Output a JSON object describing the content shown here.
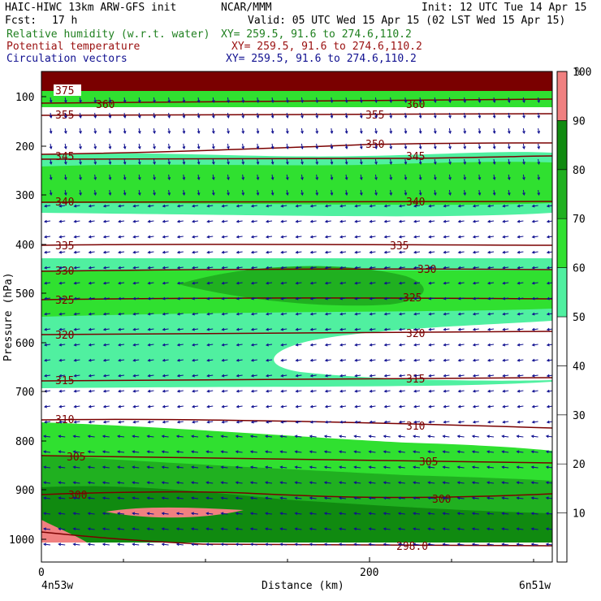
{
  "header": {
    "model": "HAIC-HIWC 13km ARW-GFS init",
    "org": "NCAR/MMM",
    "init": "Init: 12 UTC Tue 14 Apr 15",
    "fcst_label": "Fcst:",
    "fcst_value": "17 h",
    "valid": "Valid: 05 UTC Wed 15 Apr 15 (02 LST Wed 15 Apr 15)",
    "fields": [
      {
        "name": "Relative humidity (w.r.t. water)",
        "xy": "XY= 259.5, 91.6 to 274.6,110.2",
        "color": "#208020"
      },
      {
        "name": "Potential temperature",
        "xy": "XY= 259.5, 91.6 to 274.6,110.2",
        "color": "#9a1010"
      },
      {
        "name": "Circulation vectors",
        "xy": "XY= 259.5, 91.6 to 274.6,110.2",
        "color": "#101090"
      }
    ]
  },
  "chart_data": {
    "type": "heatmap",
    "ylabel": "Pressure (hPa)",
    "xlabel": "Distance (km)",
    "x_ticks": [
      "0",
      "200"
    ],
    "y_ticks": [
      "100",
      "200",
      "300",
      "400",
      "500",
      "600",
      "700",
      "800",
      "900",
      "1000"
    ],
    "left_endpoint": "4n53w",
    "right_endpoint": "6n51w",
    "colorbar": {
      "unit": "%",
      "levels": [
        "10",
        "20",
        "30",
        "40",
        "50",
        "60",
        "70",
        "80",
        "90",
        "100"
      ],
      "colors": [
        "#ffffff",
        "#ffffff",
        "#ffffff",
        "#ffffff",
        "#ffffff",
        "#50f0a0",
        "#30e030",
        "#20b020",
        "#108a10",
        "#f08080"
      ]
    },
    "theta_contours": [
      {
        "label": "375",
        "p": 75
      },
      {
        "label": "360",
        "p": 112
      },
      {
        "label": "355",
        "p": 140
      },
      {
        "label": "350",
        "p": 180
      },
      {
        "label": "345",
        "p": 220
      },
      {
        "label": "340",
        "p": 315
      },
      {
        "label": "335",
        "p": 400
      },
      {
        "label": "330",
        "p": 455
      },
      {
        "label": "325",
        "p": 510
      },
      {
        "label": "320",
        "p": 590
      },
      {
        "label": "315",
        "p": 675
      },
      {
        "label": "310",
        "p": 760
      },
      {
        "label": "305",
        "p": 835
      },
      {
        "label": "300",
        "p": 910
      },
      {
        "label": "298.0",
        "p": 1005
      }
    ],
    "rh_bands": [
      {
        "p_top": 50,
        "p_bot": 95,
        "rh": "100+"
      },
      {
        "p_top": 95,
        "p_bot": 120,
        "rh": "80-90"
      },
      {
        "p_top": 230,
        "p_bot": 350,
        "rh": "60-80"
      },
      {
        "p_top": 430,
        "p_bot": 600,
        "rh": "60-90"
      },
      {
        "p_top": 600,
        "p_bot": 800,
        "rh": "50-70"
      },
      {
        "p_top": 800,
        "p_bot": 1000,
        "rh": "70-100"
      }
    ]
  }
}
